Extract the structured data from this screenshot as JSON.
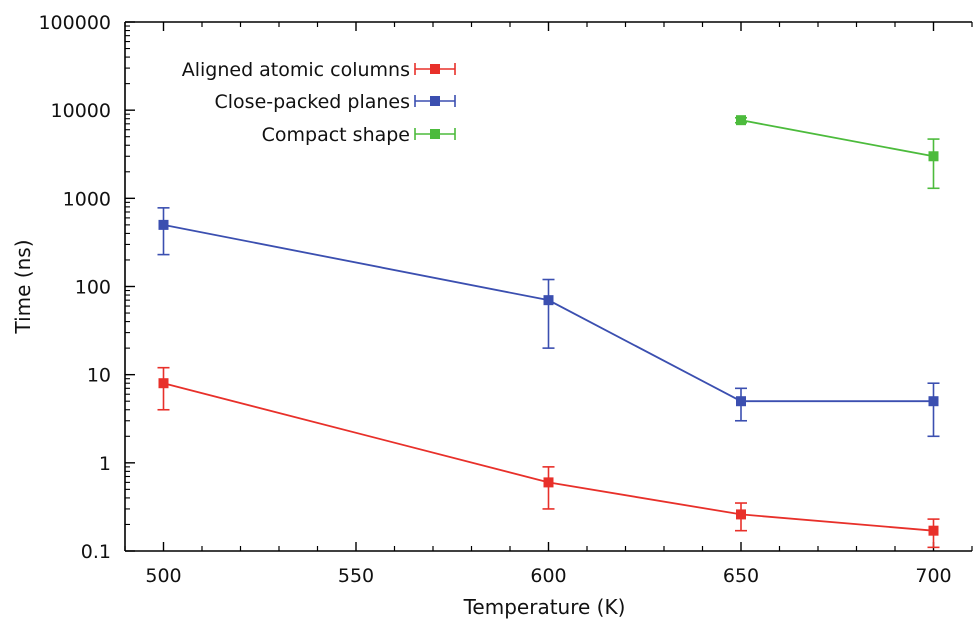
{
  "chart_data": {
    "type": "line",
    "xlabel": "Temperature (K)",
    "ylabel": "Time (ns)",
    "xlim": [
      490,
      710
    ],
    "ylim": [
      0.1,
      100000
    ],
    "y_scale": "log",
    "x_ticks": [
      500,
      550,
      600,
      650,
      700
    ],
    "x_tick_labels": [
      "500",
      "550",
      "600",
      "650",
      "700"
    ],
    "y_ticks": [
      0.1,
      1,
      10,
      100,
      1000,
      10000,
      100000
    ],
    "y_tick_labels": [
      "0.1",
      "1",
      "10",
      "100",
      "1000",
      "10000",
      "100000"
    ],
    "grid": false,
    "legend_position": "top-left",
    "series": [
      {
        "name": "Aligned atomic columns",
        "color": "#e8302a",
        "points": [
          {
            "x": 500,
            "y": 8,
            "ylo": 4,
            "yhi": 12
          },
          {
            "x": 600,
            "y": 0.6,
            "ylo": 0.3,
            "yhi": 0.9
          },
          {
            "x": 650,
            "y": 0.26,
            "ylo": 0.17,
            "yhi": 0.35
          },
          {
            "x": 700,
            "y": 0.17,
            "ylo": 0.11,
            "yhi": 0.23
          }
        ]
      },
      {
        "name": "Close-packed planes",
        "color": "#3b4fb0",
        "points": [
          {
            "x": 500,
            "y": 500,
            "ylo": 230,
            "yhi": 780
          },
          {
            "x": 600,
            "y": 70,
            "ylo": 20,
            "yhi": 120
          },
          {
            "x": 650,
            "y": 5,
            "ylo": 3,
            "yhi": 7
          },
          {
            "x": 700,
            "y": 5,
            "ylo": 2,
            "yhi": 8
          }
        ]
      },
      {
        "name": "Compact shape",
        "color": "#4cbb3c",
        "points": [
          {
            "x": 650,
            "y": 7700,
            "ylo": 7200,
            "yhi": 8200
          },
          {
            "x": 700,
            "y": 3000,
            "ylo": 1300,
            "yhi": 4700
          }
        ]
      }
    ]
  }
}
